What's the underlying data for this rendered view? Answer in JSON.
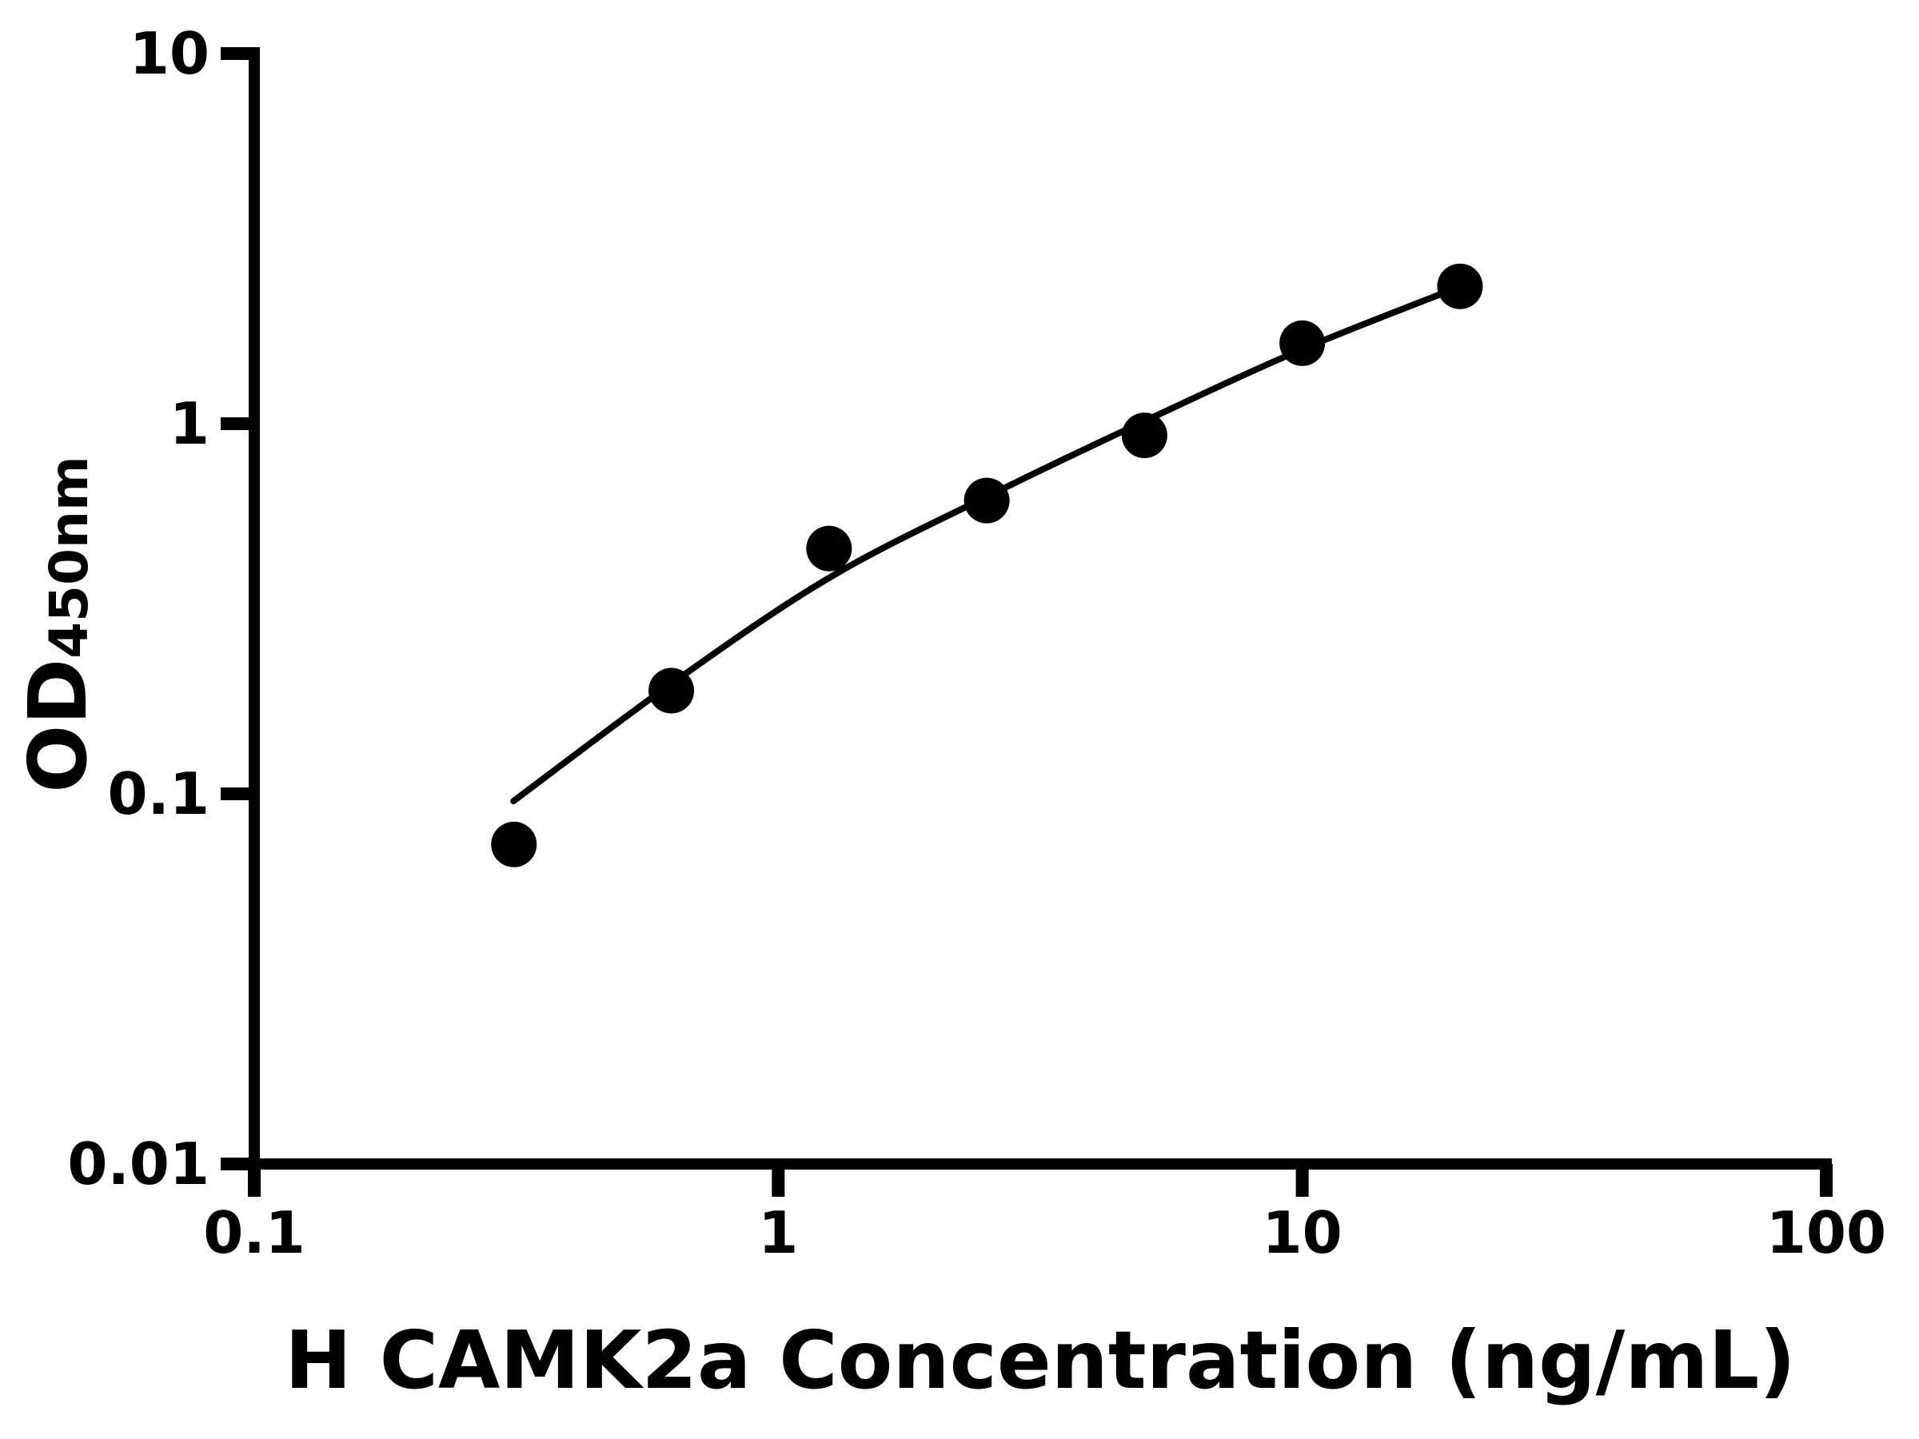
{
  "chart_data": {
    "type": "scatter",
    "xlabel": "H CAMK2a Concentration (ng/mL)",
    "ylabel_base": "OD",
    "ylabel_sub": "450nm",
    "x_scale": "log",
    "y_scale": "log",
    "xlim": [
      0.1,
      100
    ],
    "ylim": [
      0.01,
      10
    ],
    "x_tick_values": [
      0.1,
      1,
      10,
      100
    ],
    "x_tick_labels": [
      "0.1",
      "1",
      "10",
      "100"
    ],
    "y_tick_values": [
      10,
      1,
      0.1,
      0.01
    ],
    "y_tick_labels": [
      "10",
      "1",
      "0.1",
      "0.01"
    ],
    "points": [
      [
        0.313,
        0.073
      ],
      [
        0.625,
        0.19
      ],
      [
        1.25,
        0.46
      ],
      [
        2.5,
        0.62
      ],
      [
        5,
        0.93
      ],
      [
        10,
        1.65
      ],
      [
        20,
        2.35
      ]
    ],
    "fit_curve": [
      [
        0.3124,
        0.0956
      ],
      [
        0.632,
        0.2006
      ],
      [
        1.256,
        0.3848
      ],
      [
        2.506,
        0.6361
      ],
      [
        5.03,
        1.02
      ],
      [
        10.0,
        1.589
      ],
      [
        20.1,
        2.352
      ]
    ],
    "marker_color": "#000000",
    "line_color": "#000000",
    "legend": "none",
    "grid": "off"
  }
}
